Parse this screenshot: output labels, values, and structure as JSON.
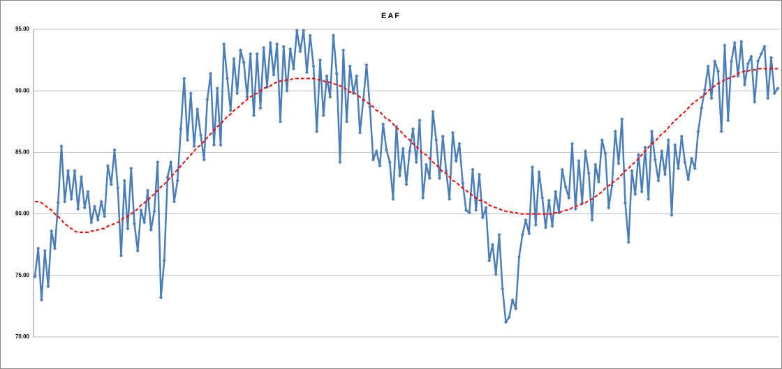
{
  "chart_data": {
    "type": "line",
    "title": "EAF",
    "categories": [
      null,
      null,
      null,
      null,
      null,
      null,
      null,
      null,
      null,
      null,
      null,
      null,
      null,
      null,
      null,
      null,
      null,
      null,
      null,
      null,
      null,
      null,
      null,
      null,
      null,
      null,
      null,
      null,
      null,
      null,
      null,
      null,
      null,
      null,
      null,
      null,
      null,
      null,
      null,
      null,
      null,
      null,
      null,
      null,
      null,
      null,
      null,
      null,
      null,
      null,
      null,
      null,
      null,
      null,
      null,
      null,
      null,
      null,
      null,
      null,
      null,
      null,
      null,
      null,
      null,
      null,
      null,
      null,
      null,
      null,
      null,
      null,
      null,
      null,
      null,
      null,
      null,
      null,
      null,
      null,
      null,
      null,
      null,
      null,
      null,
      null,
      null,
      null,
      null,
      null,
      null,
      null,
      null,
      null,
      null,
      null,
      null,
      null,
      null,
      null,
      null,
      null,
      null,
      null,
      null,
      null,
      null,
      null,
      null,
      null,
      null,
      null,
      null,
      null,
      null,
      null,
      null,
      null,
      null,
      null,
      null,
      null,
      null,
      null,
      null,
      null,
      null,
      null,
      null,
      null,
      null,
      null,
      null,
      null,
      null,
      null,
      null,
      null,
      null,
      null,
      null,
      null,
      null,
      null,
      null,
      null,
      null,
      null,
      null,
      null,
      null,
      null,
      null,
      null,
      null,
      null,
      null,
      null,
      null,
      null,
      null,
      null,
      null,
      null,
      null,
      null,
      null,
      null,
      null,
      null,
      null,
      null,
      null,
      null,
      null,
      null,
      null,
      null,
      null,
      null,
      null,
      null,
      null,
      null,
      null,
      null,
      null,
      null,
      null,
      null,
      null,
      null,
      null,
      null,
      null,
      null,
      null,
      null,
      null,
      null,
      null,
      null,
      null,
      null,
      null,
      null,
      null,
      null,
      null,
      null,
      null,
      null,
      null,
      null,
      null,
      null,
      null,
      null,
      null,
      null,
      null,
      null,
      null,
      null,
      null
    ],
    "series": [
      {
        "color": "#4a7ebb",
        "markers": true,
        "dashed": false,
        "values": [
          74.9,
          77.2,
          73.0,
          77.0,
          74.1,
          78.6,
          77.2,
          80.9,
          85.5,
          81.0,
          83.5,
          81.2,
          83.5,
          80.4,
          83.0,
          80.5,
          81.8,
          79.3,
          80.6,
          79.5,
          81.0,
          79.8,
          83.9,
          82.4,
          85.2,
          82.1,
          76.6,
          82.7,
          78.8,
          83.7,
          79.2,
          77.0,
          80.3,
          79.3,
          81.9,
          78.7,
          80.2,
          84.2,
          73.2,
          76.2,
          83.0,
          84.2,
          81.0,
          82.7,
          86.9,
          91.0,
          86.0,
          89.8,
          85.5,
          88.5,
          86.4,
          84.4,
          89.3,
          91.4,
          85.6,
          90.2,
          85.6,
          93.8,
          91.0,
          88.4,
          92.6,
          89.8,
          93.3,
          92.3,
          89.5,
          93.0,
          88.0,
          93.0,
          88.6,
          93.5,
          90.3,
          93.9,
          91.3,
          93.8,
          87.5,
          93.6,
          90.0,
          93.4,
          91.8,
          94.9,
          93.2,
          94.9,
          91.5,
          94.5,
          92.0,
          86.7,
          92.5,
          88.0,
          91.2,
          89.5,
          94.5,
          91.4,
          84.2,
          93.3,
          87.5,
          92.0,
          89.8,
          91.2,
          86.6,
          89.2,
          92.1,
          88.7,
          84.4,
          85.1,
          83.9,
          87.3,
          85.2,
          84.2,
          81.2,
          87.1,
          83.1,
          85.3,
          82.4,
          85.1,
          86.9,
          84.2,
          87.6,
          81.3,
          84.0,
          82.9,
          88.3,
          86.0,
          82.9,
          86.3,
          83.5,
          81.2,
          86.6,
          84.3,
          85.7,
          82.5,
          80.3,
          80.1,
          83.6,
          80.3,
          83.2,
          79.7,
          80.5,
          76.2,
          77.5,
          75.1,
          78.3,
          73.9,
          71.2,
          71.6,
          73.0,
          72.3,
          76.5,
          78.3,
          79.5,
          78.4,
          83.8,
          79.1,
          83.4,
          81.3,
          78.9,
          81.1,
          79.0,
          81.8,
          80.1,
          83.6,
          82.2,
          81.3,
          85.7,
          80.4,
          84.3,
          80.9,
          85.1,
          83.3,
          79.5,
          84.0,
          82.6,
          86.0,
          84.9,
          80.5,
          82.3,
          86.7,
          84.1,
          87.7,
          80.9,
          77.7,
          83.5,
          81.6,
          84.8,
          81.8,
          85.4,
          81.2,
          86.7,
          84.4,
          82.7,
          85.1,
          83.2,
          86.0,
          79.9,
          85.6,
          83.7,
          86.3,
          84.2,
          82.8,
          84.5,
          83.7,
          86.7,
          88.6,
          90.1,
          92.0,
          89.4,
          92.4,
          91.6,
          86.7,
          93.7,
          87.6,
          92.4,
          93.9,
          91.2,
          94.0,
          90.5,
          92.2,
          92.8,
          89.1,
          92.4,
          93.0,
          93.6,
          89.4,
          92.7,
          89.8,
          90.2
        ]
      },
      {
        "color": "#ff0000",
        "markers": false,
        "dashed": true,
        "values": [
          81.0,
          81.0,
          80.9,
          80.7,
          80.5,
          80.3,
          80.0,
          79.8,
          79.5,
          79.2,
          79.0,
          78.8,
          78.6,
          78.5,
          78.5,
          78.5,
          78.5,
          78.6,
          78.6,
          78.7,
          78.8,
          78.8,
          79.0,
          79.1,
          79.2,
          79.3,
          79.5,
          79.7,
          79.8,
          80.0,
          80.2,
          80.4,
          80.7,
          80.9,
          81.1,
          81.4,
          81.6,
          81.9,
          82.2,
          82.4,
          82.7,
          83.0,
          83.3,
          83.6,
          83.9,
          84.2,
          84.5,
          84.8,
          85.1,
          85.4,
          85.6,
          85.9,
          86.2,
          86.5,
          86.8,
          87.1,
          87.3,
          87.6,
          87.9,
          88.1,
          88.4,
          88.6,
          88.8,
          89.1,
          89.3,
          89.5,
          89.7,
          89.8,
          90.0,
          90.2,
          90.3,
          90.4,
          90.6,
          90.7,
          90.8,
          90.8,
          90.9,
          90.9,
          91.0,
          91.0,
          91.0,
          91.0,
          91.0,
          91.0,
          91.0,
          90.9,
          90.9,
          90.8,
          90.7,
          90.7,
          90.6,
          90.5,
          90.4,
          90.3,
          90.1,
          89.9,
          89.9,
          89.7,
          89.5,
          89.3,
          89.1,
          88.9,
          88.7,
          88.4,
          88.3,
          88.0,
          87.7,
          87.6,
          87.3,
          87.0,
          86.8,
          86.5,
          86.2,
          86.0,
          85.7,
          85.5,
          85.2,
          84.9,
          84.8,
          84.5,
          84.2,
          84.0,
          83.7,
          83.4,
          83.3,
          83.0,
          82.7,
          82.6,
          82.3,
          82.1,
          81.9,
          81.7,
          81.5,
          81.3,
          81.1,
          81.1,
          80.9,
          80.7,
          80.6,
          80.5,
          80.4,
          80.3,
          80.2,
          80.2,
          80.1,
          80.1,
          80.0,
          80.0,
          80.0,
          80.0,
          80.0,
          80.0,
          80.0,
          80.0,
          80.0,
          80.0,
          80.0,
          80.1,
          80.1,
          80.2,
          80.3,
          80.3,
          80.5,
          80.6,
          80.7,
          80.8,
          80.9,
          81.1,
          81.2,
          81.4,
          81.6,
          81.8,
          82.1,
          82.3,
          82.5,
          82.7,
          82.9,
          83.2,
          83.5,
          83.7,
          84.0,
          84.2,
          84.5,
          84.8,
          85.1,
          85.4,
          85.7,
          85.9,
          86.2,
          86.5,
          86.7,
          87.0,
          87.3,
          87.6,
          87.8,
          88.1,
          88.3,
          88.6,
          88.9,
          89.1,
          89.3,
          89.5,
          89.7,
          90.0,
          90.2,
          90.4,
          90.6,
          90.7,
          90.9,
          91.0,
          91.1,
          91.2,
          91.4,
          91.5,
          91.6,
          91.6,
          91.7,
          91.7,
          91.8,
          91.8,
          91.8,
          91.8,
          91.8,
          91.8,
          91.8
        ]
      }
    ],
    "ylim": [
      70,
      95
    ],
    "yticks": [
      {
        "value": 70,
        "label": "70.00"
      },
      {
        "value": 75,
        "label": "75.00"
      },
      {
        "value": 80,
        "label": "80.00"
      },
      {
        "value": 85,
        "label": "85.00"
      },
      {
        "value": 90,
        "label": "90.00"
      },
      {
        "value": 95,
        "label": "95.00"
      }
    ],
    "grid": true
  }
}
